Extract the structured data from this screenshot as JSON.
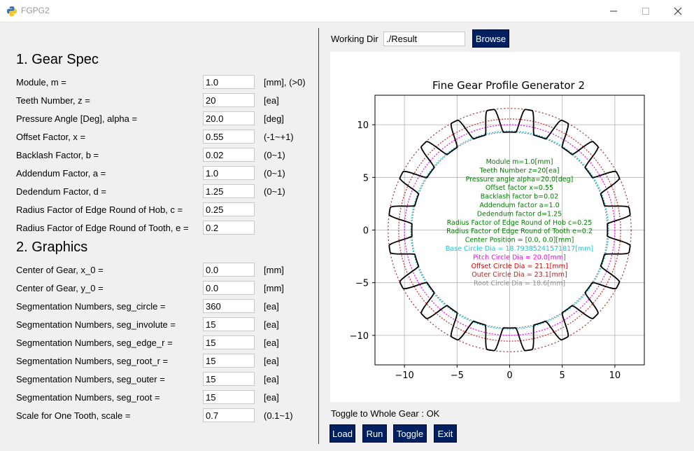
{
  "window": {
    "title": "FGPG2"
  },
  "sections": {
    "gear_spec": "1. Gear Spec",
    "graphics": "2. Graphics"
  },
  "gear_spec": [
    {
      "label": "Module, m =",
      "value": "1.0",
      "unit": "[mm], (>0)"
    },
    {
      "label": "Teeth Number, z =",
      "value": "20",
      "unit": "[ea]"
    },
    {
      "label": "Pressure Angle [Deg], alpha =",
      "value": "20.0",
      "unit": "[deg]"
    },
    {
      "label": "Offset Factor, x =",
      "value": "0.55",
      "unit": "(-1~+1)"
    },
    {
      "label": "Backlash Factor, b =",
      "value": "0.02",
      "unit": "(0~1)"
    },
    {
      "label": "Addendum Factor, a =",
      "value": "1.0",
      "unit": "(0~1)"
    },
    {
      "label": "Dedendum Factor, d =",
      "value": "1.25",
      "unit": "(0~1)"
    },
    {
      "label": "Radius Factor of Edge Round of Hob, c =",
      "value": "0.25",
      "unit": ""
    },
    {
      "label": "Radius Factor of Edge Round of Tooth, e =",
      "value": "0.2",
      "unit": ""
    }
  ],
  "graphics": [
    {
      "label": "Center of Gear, x_0 =",
      "value": "0.0",
      "unit": "[mm]"
    },
    {
      "label": "Center of Gear, y_0 =",
      "value": "0.0",
      "unit": "[mm]"
    },
    {
      "label": "Segmentation Numbers, seg_circle =",
      "value": "360",
      "unit": "[ea]"
    },
    {
      "label": "Segmentation Numbers, seg_involute =",
      "value": "15",
      "unit": "[ea]"
    },
    {
      "label": "Segmentation Numbers, seg_edge_r =",
      "value": "15",
      "unit": "[ea]"
    },
    {
      "label": "Segmentation Numbers, seg_root_r =",
      "value": "15",
      "unit": "[ea]"
    },
    {
      "label": "Segmentation Numbers, seg_outer =",
      "value": "15",
      "unit": "[ea]"
    },
    {
      "label": "Segmentation Numbers, seg_root =",
      "value": "15",
      "unit": "[ea]"
    },
    {
      "label": "Scale for One Tooth, scale =",
      "value": "0.7",
      "unit": "(0.1~1)"
    }
  ],
  "working_dir": {
    "label": "Working Dir",
    "value": "./Result",
    "browse_label": "Browse"
  },
  "status": "Toggle to Whole Gear : OK",
  "buttons": {
    "load": "Load",
    "run": "Run",
    "toggle": "Toggle",
    "exit": "Exit"
  },
  "colors": {
    "button_bg": "#002060",
    "tooth": "#000000",
    "text_green": "#008000",
    "base_circle": "#00c8d8",
    "pitch_circle": "#ff00ff",
    "offset_circle": "#d62728",
    "outer_circle": "#a52a2a",
    "root_circle": "#808080"
  },
  "chart_data": {
    "type": "line",
    "title": "Fine Gear Profile Generator 2",
    "xlim": [
      -12.8,
      12.8
    ],
    "ylim": [
      -12.8,
      12.8
    ],
    "xticks": [
      -10,
      -5,
      0,
      5,
      10
    ],
    "yticks": [
      -10,
      -5,
      0,
      5,
      10
    ],
    "tick_labels_x": [
      "−10",
      "−5",
      "0",
      "5",
      "10"
    ],
    "tick_labels_y": [
      "−10",
      "−5",
      "0",
      "5",
      "10"
    ],
    "grid": true,
    "gear": {
      "teeth": 20,
      "module": 1.0,
      "alpha_deg": 20.0,
      "offset_x": 0.55,
      "outer_radius": 11.55,
      "root_radius": 9.3
    },
    "circles": [
      {
        "name": "base",
        "diameter": 18.79385241571817,
        "color": "#00c8d8",
        "dash": "2,2"
      },
      {
        "name": "pitch",
        "diameter": 20.0,
        "color": "#ff00ff",
        "dash": "2,2"
      },
      {
        "name": "offset",
        "diameter": 21.1,
        "color": "#d62728",
        "dash": "2,2"
      },
      {
        "name": "outer",
        "diameter": 23.1,
        "color": "#a52a2a",
        "dash": "2,3"
      },
      {
        "name": "root",
        "diameter": 18.6,
        "color": "#808080",
        "dash": "2,2"
      }
    ],
    "annotations": [
      {
        "text": "Module m=1.0[mm]",
        "color": "#008000"
      },
      {
        "text": "Teeth Number z=20[ea]",
        "color": "#008000"
      },
      {
        "text": "Pressure angle alpha=20.0[deg]",
        "color": "#008000"
      },
      {
        "text": "Offset factor x=0.55",
        "color": "#008000"
      },
      {
        "text": "Backlash factor b=0.02",
        "color": "#008000"
      },
      {
        "text": "Addendum factor a=1.0",
        "color": "#008000"
      },
      {
        "text": "Dedendum factor d=1.25",
        "color": "#008000"
      },
      {
        "text": "Radius Factor of Edge Round of Hob c=0.25",
        "color": "#008000"
      },
      {
        "text": "Radius Factor of Edge Round of Tooth e=0.2",
        "color": "#008000"
      },
      {
        "text": "Center Position = [0.0, 0.0][mm]",
        "color": "#008000"
      },
      {
        "text": "Base Circle Dia = 18.79385241571817[mm]",
        "color": "#00d0e0"
      },
      {
        "text": "Pitch Circle Dia = 20.0[mm]",
        "color": "#ff00ff"
      },
      {
        "text": "Offset Circle Dia = 21.1[mm]",
        "color": "#e00000"
      },
      {
        "text": "Outer Circle Dia = 23.1[mm]",
        "color": "#a52a2a"
      },
      {
        "text": "Root Circle Dia = 18.6[mm]",
        "color": "#909090"
      }
    ]
  }
}
